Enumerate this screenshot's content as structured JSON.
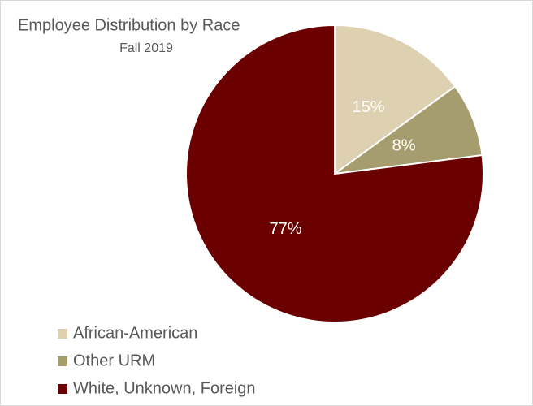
{
  "chart_data": {
    "type": "pie",
    "title": "Employee Distribution by Race",
    "subtitle": "Fall 2019",
    "categories": [
      "African-American",
      "Other URM",
      "White, Unknown, Foreign"
    ],
    "values": [
      15,
      8,
      77
    ],
    "value_labels": [
      "15%",
      "8%",
      "77%"
    ],
    "colors": [
      "#ddd1b1",
      "#a69d6f",
      "#6b0000"
    ],
    "legend": "bottom-left"
  }
}
